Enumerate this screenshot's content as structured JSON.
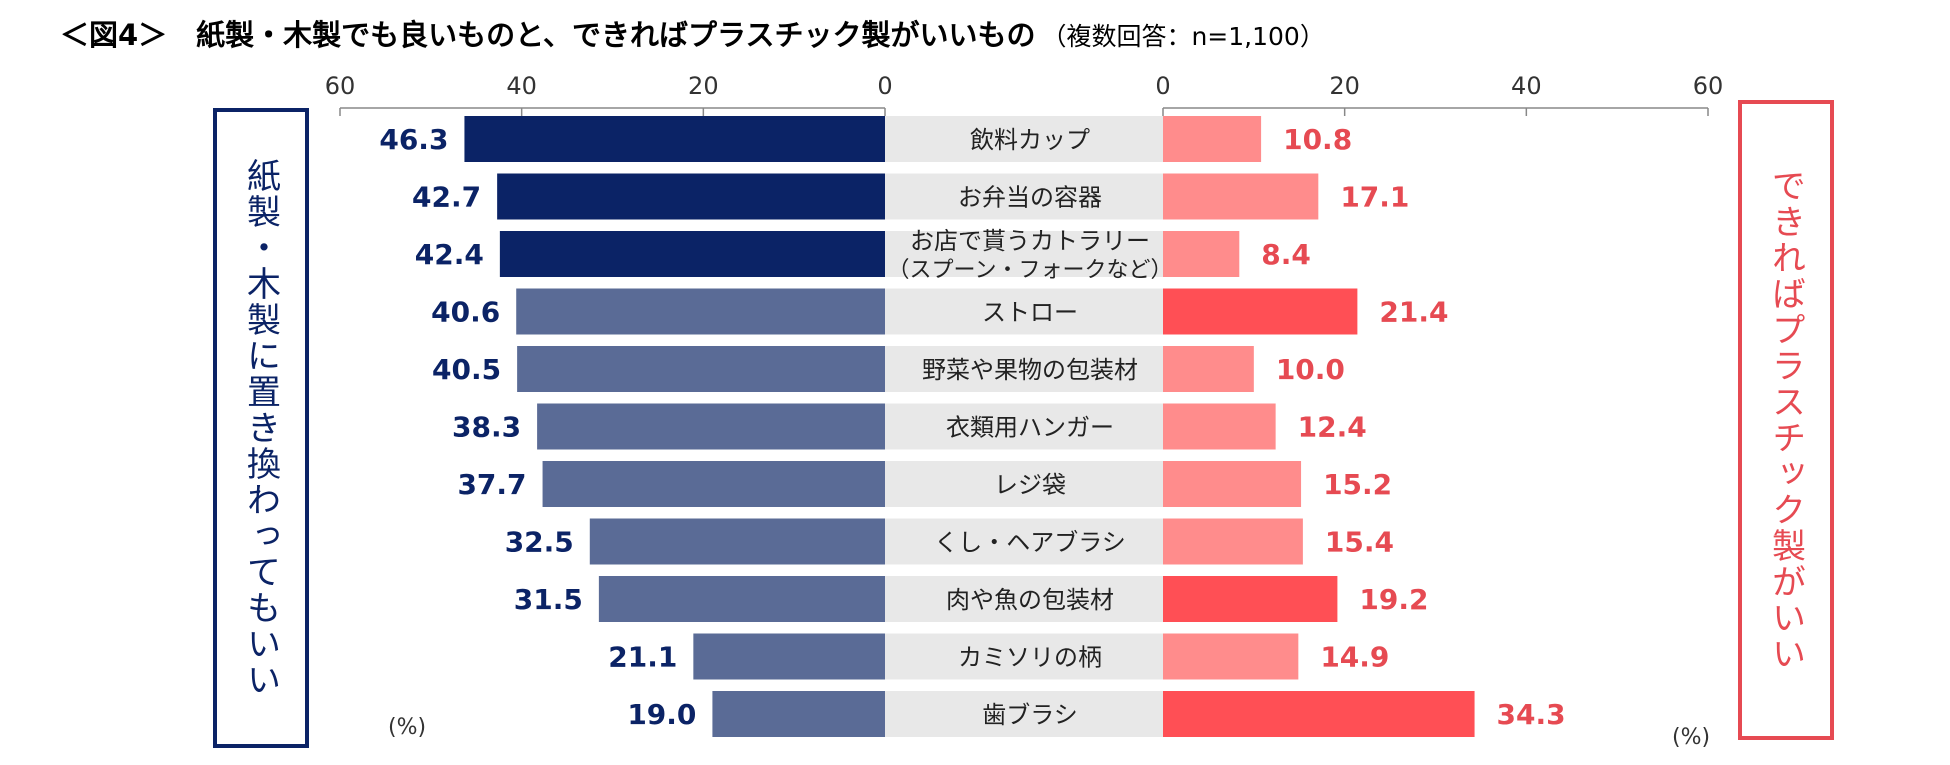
{
  "title": {
    "main": "＜図4＞　紙製・木製でも良いものと、できればプラスチック製がいいもの",
    "sub": "（複数回答：n=1,100）"
  },
  "side_labels": {
    "left": "紙製・木製に置き換わってもいい",
    "right": "できればプラスチック製がいい"
  },
  "unit_labels": {
    "left": "(%)",
    "right": "(%)"
  },
  "colors": {
    "left_top": "#0b2366",
    "left_rest": "#5a6b96",
    "right_light": "#ff8c8c",
    "right_strong": "#ff4f55",
    "label_band": "#e8e8e8",
    "left_value_text": "#0b2366",
    "right_value_text": "#e64a52",
    "axis": "#888888"
  },
  "chart_data": {
    "type": "bar",
    "orientation": "horizontal-butterfly",
    "categories": [
      "飲料カップ",
      "お弁当の容器",
      "お店で貰うカトラリー\n（スプーン・フォークなど）",
      "ストロー",
      "野菜や果物の包装材",
      "衣類用ハンガー",
      "レジ袋",
      "くし・ヘアブラシ",
      "肉や魚の包装材",
      "カミソリの柄",
      "歯ブラシ"
    ],
    "series": [
      {
        "name": "紙製・木製に置き換わってもいい",
        "values": [
          46.3,
          42.7,
          42.4,
          40.6,
          40.5,
          38.3,
          37.7,
          32.5,
          31.5,
          21.1,
          19.0
        ],
        "labels": [
          "46.3",
          "42.7",
          "42.4",
          "40.6",
          "40.5",
          "38.3",
          "37.7",
          "32.5",
          "31.5",
          "21.1",
          "19.0"
        ],
        "highlight_top_n": 3
      },
      {
        "name": "できればプラスチック製がいい",
        "values": [
          10.8,
          17.1,
          8.4,
          21.4,
          10.0,
          12.4,
          15.2,
          15.4,
          19.2,
          14.9,
          34.3
        ],
        "labels": [
          "10.8",
          "17.1",
          "8.4",
          "21.4",
          "10.0",
          "12.4",
          "15.2",
          "15.4",
          "19.2",
          "14.9",
          "34.3"
        ],
        "highlight_indices": [
          3,
          8,
          10
        ]
      }
    ],
    "left_axis": {
      "ticks": [
        60,
        40,
        20,
        0
      ],
      "tick_labels": [
        "60",
        "40",
        "20",
        "0"
      ],
      "range": [
        0,
        60
      ]
    },
    "right_axis": {
      "ticks": [
        0,
        20,
        40,
        60
      ],
      "tick_labels": [
        "0",
        "20",
        "40",
        "60"
      ],
      "range": [
        0,
        60
      ]
    },
    "unit": "(%)"
  }
}
